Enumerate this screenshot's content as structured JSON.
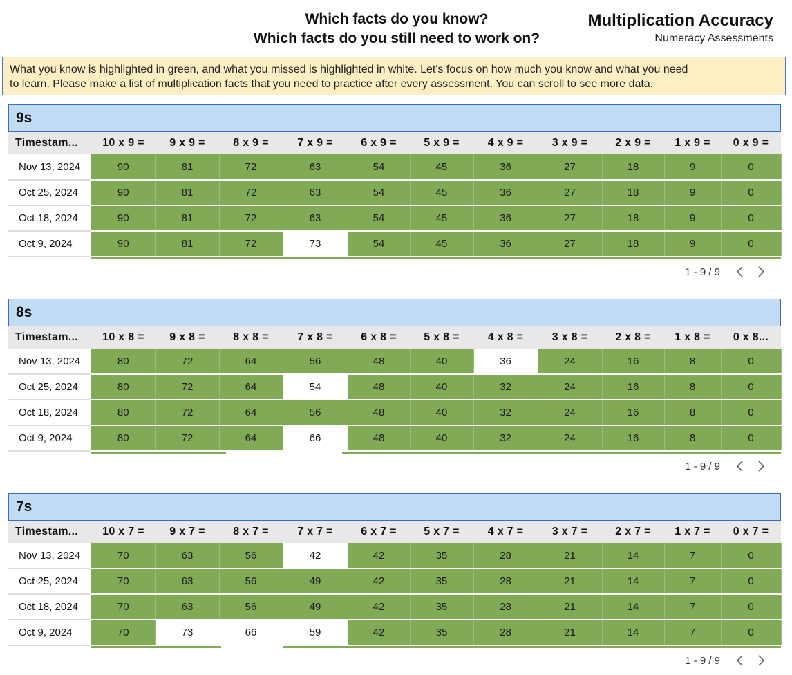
{
  "header": {
    "question_1": "Which facts do you know?",
    "question_2": "Which facts do you still need to work on?",
    "title": "Multiplication Accuracy",
    "subtitle": "Numeracy Assessments"
  },
  "info": {
    "line_1": "What you know is highlighted in green, and what you missed is highlighted in white. Let's focus on how much you know and what you need",
    "line_2": "to learn.  Please make a list of multiplication facts that you need to practice after every assessment.  You can scroll to see more data."
  },
  "colors": {
    "correct": "#80aa55",
    "missed": "#ffffff",
    "section_header": "#c2dcf5",
    "info_box": "#fdefc3"
  },
  "tables": [
    {
      "title": "9s",
      "timestamp_header": "Timestam...",
      "columns": [
        "10 x 9 =",
        "9 x 9 =",
        "8 x 9 =",
        "7 x 9 =",
        "6 x 9 =",
        "5 x 9 =",
        "4 x 9 =",
        "3 x 9 =",
        "2 x 9 =",
        "1 x 9 =",
        "0 x 9 ="
      ],
      "rows": [
        {
          "date": "Nov 13, 2024",
          "values": [
            "90",
            "81",
            "72",
            "63",
            "54",
            "45",
            "36",
            "27",
            "18",
            "9",
            "0"
          ],
          "missed": []
        },
        {
          "date": "Oct 25, 2024",
          "values": [
            "90",
            "81",
            "72",
            "63",
            "54",
            "45",
            "36",
            "27",
            "18",
            "9",
            "0"
          ],
          "missed": []
        },
        {
          "date": "Oct 18, 2024",
          "values": [
            "90",
            "81",
            "72",
            "63",
            "54",
            "45",
            "36",
            "27",
            "18",
            "9",
            "0"
          ],
          "missed": []
        },
        {
          "date": "Oct 9, 2024",
          "values": [
            "90",
            "81",
            "72",
            "73",
            "54",
            "45",
            "36",
            "27",
            "18",
            "9",
            "0"
          ],
          "missed": [
            3
          ]
        }
      ],
      "pagination": "1 - 9 / 9"
    },
    {
      "title": "8s",
      "timestamp_header": "Timestam...",
      "columns": [
        "10 x 8 =",
        "9 x 8 =",
        "8 x 8 =",
        "7 x 8 =",
        "6 x 8 =",
        "5 x 8 =",
        "4 x 8 =",
        "3 x 8 =",
        "2 x 8 =",
        "1 x 8 =",
        "0 x 8..."
      ],
      "rows": [
        {
          "date": "Nov 13, 2024",
          "values": [
            "80",
            "72",
            "64",
            "56",
            "48",
            "40",
            "36",
            "24",
            "16",
            "8",
            "0"
          ],
          "missed": [
            6
          ]
        },
        {
          "date": "Oct 25, 2024",
          "values": [
            "80",
            "72",
            "64",
            "54",
            "48",
            "40",
            "32",
            "24",
            "16",
            "8",
            "0"
          ],
          "missed": [
            3
          ]
        },
        {
          "date": "Oct 18, 2024",
          "values": [
            "80",
            "72",
            "64",
            "56",
            "48",
            "40",
            "32",
            "24",
            "16",
            "8",
            "0"
          ],
          "missed": []
        },
        {
          "date": "Oct 9, 2024",
          "values": [
            "80",
            "72",
            "64",
            "66",
            "48",
            "40",
            "32",
            "24",
            "16",
            "8",
            "0"
          ],
          "missed": [
            3
          ]
        }
      ],
      "pagination": "1 - 9 / 9"
    },
    {
      "title": "7s",
      "timestamp_header": "Timestam...",
      "columns": [
        "10 x 7 =",
        "9 x 7 =",
        "8 x 7 =",
        "7 x 7 =",
        "6 x 7 =",
        "5 x 7 =",
        "4 x 7 =",
        "3 x 7 =",
        "2 x 7 =",
        "1 x 7 =",
        "0 x 7 ="
      ],
      "rows": [
        {
          "date": "Nov 13, 2024",
          "values": [
            "70",
            "63",
            "56",
            "42",
            "42",
            "35",
            "28",
            "21",
            "14",
            "7",
            "0"
          ],
          "missed": [
            3
          ]
        },
        {
          "date": "Oct 25, 2024",
          "values": [
            "70",
            "63",
            "56",
            "49",
            "42",
            "35",
            "28",
            "21",
            "14",
            "7",
            "0"
          ],
          "missed": []
        },
        {
          "date": "Oct 18, 2024",
          "values": [
            "70",
            "63",
            "56",
            "49",
            "42",
            "35",
            "28",
            "21",
            "14",
            "7",
            "0"
          ],
          "missed": []
        },
        {
          "date": "Oct 9, 2024",
          "values": [
            "70",
            "73",
            "66",
            "59",
            "42",
            "35",
            "28",
            "21",
            "14",
            "7",
            "0"
          ],
          "missed": [
            1,
            2,
            3
          ]
        }
      ],
      "pagination": "1 - 9 / 9"
    }
  ]
}
